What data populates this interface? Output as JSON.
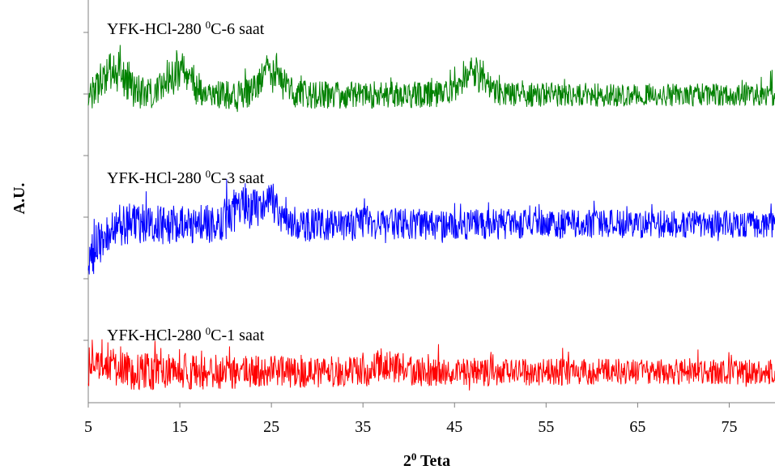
{
  "chart_data": {
    "type": "line",
    "title": "",
    "xlabel_base": "2",
    "xlabel_sup": "0",
    "xlabel_rest": " Teta",
    "ylabel": "A.U.",
    "x_ticks": [
      5,
      15,
      25,
      35,
      45,
      55,
      65,
      75
    ],
    "xlim": [
      5,
      80
    ],
    "grid": false,
    "legend": "none",
    "series": [
      {
        "label_main": "YFK-HCl-280 ",
        "label_sup": "0",
        "label_rest": "C-1 saat",
        "color": "#ff0000",
        "baseline": 1.0,
        "amplitude": 1.0,
        "peaks": [
          [
            7.5,
            0.45
          ],
          [
            38,
            0.35
          ]
        ]
      },
      {
        "label_main": "YFK-HCl-280 ",
        "label_sup": "0",
        "label_rest": "C-3 saat",
        "color": "#0000ff",
        "baseline": 5.8,
        "amplitude": 1.1,
        "peaks": [
          [
            22,
            0.9
          ],
          [
            25,
            0.8
          ],
          [
            5.2,
            -1.0
          ]
        ]
      },
      {
        "label_main": "YFK-HCl-280 ",
        "label_sup": "0",
        "label_rest": "C-6 saat",
        "color": "#008000",
        "baseline": 10.0,
        "amplitude": 0.9,
        "peaks": [
          [
            8,
            1.0
          ],
          [
            15,
            1.0
          ],
          [
            25,
            1.0
          ],
          [
            47,
            1.0
          ]
        ]
      }
    ]
  }
}
